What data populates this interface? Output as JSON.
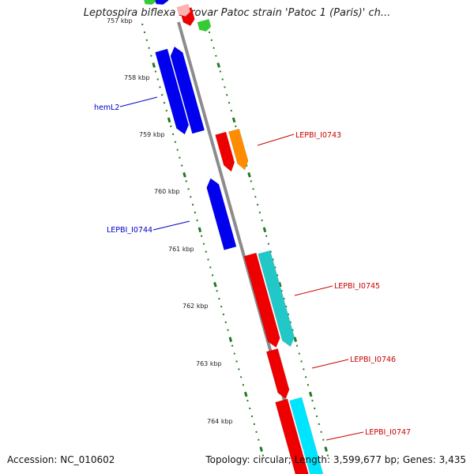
{
  "title": "Leptospira biflexa serovar Patoc strain 'Patoc 1 (Paris)' ch...",
  "footer": {
    "accession": "Accession: NC_010602",
    "summary": "Topology: circular; Length: 3,599,677 bp; Genes: 3,435"
  },
  "axis": {
    "unit": "kbp",
    "ticks": [
      "757 kbp",
      "758 kbp",
      "759 kbp",
      "760 kbp",
      "761 kbp",
      "762 kbp",
      "763 kbp",
      "764 kbp"
    ]
  },
  "labels": {
    "hemL2": "hemL2",
    "lepbi_0744": "LEPBI_I0744",
    "lepbi_0743": "LEPBI_I0743",
    "lepbi_0745": "LEPBI_I0745",
    "lepbi_0746": "LEPBI_I0746",
    "lepbi_0747": "LEPBI_I0747"
  },
  "colors": {
    "backbone": "#8c8c8c",
    "tick": "#1f7a1f",
    "gene_blue": "#0000ee",
    "gene_red": "#ee0000",
    "gene_orange": "#ff8c00",
    "gene_cyan": "#22c8c8",
    "gene_cyan_light": "#00e5ff",
    "gene_pink": "#ffb0b0",
    "gene_green": "#33cc33",
    "label_blue": "#0000cc",
    "label_red": "#cc0000"
  }
}
